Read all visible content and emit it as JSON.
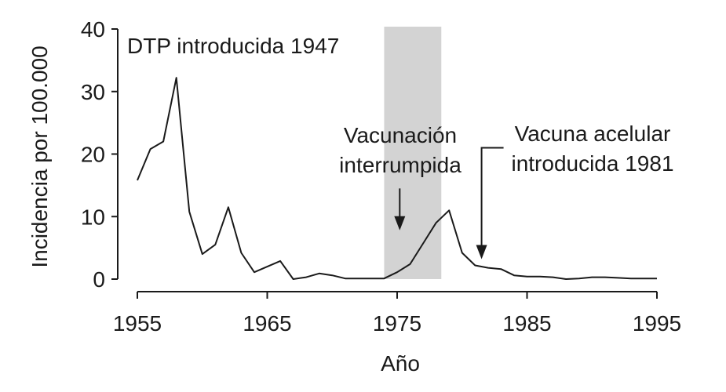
{
  "chart_data": {
    "type": "line",
    "xlabel": "Año",
    "ylabel": "Incidencia por 100.000",
    "xlim": [
      1955,
      1995
    ],
    "ylim": [
      0,
      40
    ],
    "grid": false,
    "x_ticks": [
      1955,
      1965,
      1975,
      1985,
      1995
    ],
    "x_tick_labels": [
      "1955",
      "1965",
      "1975",
      "1985",
      "1995"
    ],
    "y_ticks": [
      0,
      10,
      20,
      30,
      40
    ],
    "y_tick_labels": [
      "0",
      "10",
      "20",
      "30",
      "40"
    ],
    "colors": {
      "line": "#1a1a1a",
      "shaded_band": "#d3d3d3"
    },
    "series": [
      {
        "x": [
          1955,
          1956,
          1957,
          1958,
          1959,
          1960,
          1961,
          1962,
          1963,
          1964,
          1965,
          1966,
          1967,
          1968,
          1969,
          1970,
          1971,
          1972,
          1973,
          1974,
          1975,
          1976,
          1977,
          1978,
          1979,
          1980,
          1981,
          1982,
          1983,
          1984,
          1985,
          1986,
          1987,
          1988,
          1989,
          1990,
          1991,
          1992,
          1993,
          1994,
          1995
        ],
        "y": [
          15.8,
          20.8,
          22,
          32.2,
          10.8,
          4,
          5.5,
          11.5,
          4.2,
          1.1,
          2,
          2.9,
          0,
          0.3,
          0.9,
          0.6,
          0.1,
          0.1,
          0.1,
          0.1,
          1.1,
          2.4,
          5.7,
          9,
          11,
          4.2,
          2.2,
          1.8,
          1.6,
          0.6,
          0.4,
          0.4,
          0.3,
          0,
          0.1,
          0.3,
          0.3,
          0.2,
          0.1,
          0.1,
          0.1
        ]
      }
    ],
    "shaded_region": {
      "x_start": 1974,
      "x_end": 1978.4
    },
    "annotations": [
      {
        "lines": [
          "DTP  introducida 1947"
        ]
      },
      {
        "lines": [
          "Vacunación",
          "interrumpida"
        ],
        "arrow_x": 1975.2,
        "arrow_y_start": 14.5,
        "arrow_y_end": 7.8
      },
      {
        "lines": [
          "Vacuna acelular",
          "introducida 1981"
        ],
        "arrow_x": 1981.5,
        "arrow_y_start": 21,
        "arrow_y_end": 3.2
      }
    ]
  }
}
